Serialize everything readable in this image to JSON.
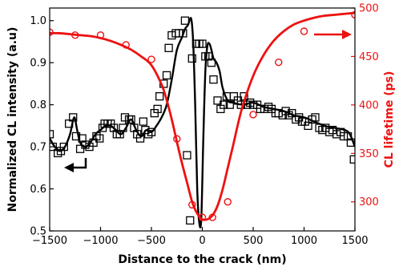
{
  "chart_data": {
    "type": "line",
    "xlabel": "Distance to the crack (nm)",
    "ylabel_left": "Normalized CL intensity (a.u)",
    "ylabel_right": "CL lifetime (ps)",
    "xlim": [
      -1500,
      1500
    ],
    "ylim_left": [
      0.5,
      1.03
    ],
    "ylim_right": [
      270,
      500
    ],
    "x_ticks": [
      -1500,
      -1000,
      -500,
      0,
      500,
      1000,
      1500
    ],
    "x_tick_labels": [
      "−1500",
      "−1000",
      "−500",
      "0",
      "500",
      "1000",
      "1500"
    ],
    "y_left_ticks": [
      0.5,
      0.6,
      0.7,
      0.8,
      0.9,
      1.0
    ],
    "y_left_tick_labels": [
      "0.5",
      "0.6",
      "0.7",
      "0.8",
      "0.9",
      "1.0"
    ],
    "y_right_ticks": [
      300,
      350,
      400,
      450,
      500
    ],
    "y_right_tick_labels": [
      "300",
      "350",
      "400",
      "450",
      "500"
    ],
    "grid": false,
    "colors": {
      "intensity": "#000000",
      "lifetime": "#ee1111"
    },
    "series": [
      {
        "axis": "left",
        "style": "open-squares",
        "x": [
          -1500,
          -1470,
          -1420,
          -1390,
          -1360,
          -1310,
          -1270,
          -1240,
          -1200,
          -1180,
          -1150,
          -1110,
          -1070,
          -1040,
          -1010,
          -980,
          -960,
          -930,
          -900,
          -870,
          -840,
          -810,
          -780,
          -760,
          -720,
          -700,
          -670,
          -640,
          -610,
          -580,
          -560,
          -530,
          -500,
          -470,
          -440,
          -420,
          -380,
          -350,
          -330,
          -300,
          -260,
          -230,
          -190,
          -170,
          -150,
          -120,
          -100,
          -60,
          -30,
          0,
          30,
          60,
          90,
          110,
          150,
          180,
          210,
          240,
          270,
          310,
          350,
          380,
          410,
          440,
          470,
          500,
          540,
          570,
          610,
          650,
          680,
          720,
          750,
          790,
          820,
          850,
          880,
          920,
          950,
          980,
          1010,
          1040,
          1080,
          1110,
          1150,
          1180,
          1210,
          1250,
          1280,
          1320,
          1360,
          1390,
          1430,
          1460,
          1490
        ],
        "y": [
          0.73,
          0.7,
          0.685,
          0.69,
          0.7,
          0.755,
          0.77,
          0.725,
          0.695,
          0.72,
          0.705,
          0.7,
          0.71,
          0.725,
          0.72,
          0.745,
          0.755,
          0.755,
          0.755,
          0.745,
          0.73,
          0.73,
          0.745,
          0.77,
          0.765,
          0.765,
          0.745,
          0.73,
          0.72,
          0.76,
          0.74,
          0.73,
          0.735,
          0.78,
          0.79,
          0.82,
          0.85,
          0.87,
          0.935,
          0.965,
          0.97,
          0.97,
          0.97,
          1.0,
          0.68,
          0.525,
          0.91,
          0.945,
          0.945,
          0.945,
          0.915,
          0.915,
          0.9,
          0.86,
          0.81,
          0.79,
          0.8,
          0.82,
          0.8,
          0.82,
          0.81,
          0.8,
          0.82,
          0.8,
          0.805,
          0.8,
          0.8,
          0.79,
          0.79,
          0.795,
          0.79,
          0.78,
          0.78,
          0.775,
          0.785,
          0.775,
          0.78,
          0.765,
          0.77,
          0.76,
          0.76,
          0.75,
          0.765,
          0.77,
          0.745,
          0.74,
          0.745,
          0.735,
          0.74,
          0.73,
          0.735,
          0.725,
          0.725,
          0.71,
          0.67
        ]
      },
      {
        "axis": "left",
        "style": "line",
        "x": [
          -1500,
          -1450,
          -1400,
          -1350,
          -1300,
          -1260,
          -1230,
          -1200,
          -1150,
          -1100,
          -1050,
          -1000,
          -950,
          -900,
          -850,
          -800,
          -750,
          -700,
          -650,
          -600,
          -550,
          -500,
          -450,
          -400,
          -350,
          -300,
          -250,
          -200,
          -170,
          -140,
          -110,
          -90,
          -70,
          -50,
          -30,
          -10,
          10,
          30,
          50,
          70,
          90,
          110,
          140,
          170,
          200,
          250,
          300,
          400,
          500,
          600,
          700,
          800,
          900,
          1000,
          1100,
          1200,
          1300,
          1400,
          1450,
          1500
        ],
        "y": [
          0.72,
          0.7,
          0.69,
          0.7,
          0.73,
          0.77,
          0.74,
          0.71,
          0.7,
          0.71,
          0.73,
          0.74,
          0.75,
          0.75,
          0.74,
          0.73,
          0.745,
          0.765,
          0.74,
          0.725,
          0.74,
          0.735,
          0.75,
          0.77,
          0.8,
          0.86,
          0.93,
          0.96,
          0.98,
          0.99,
          1.005,
          0.95,
          0.8,
          0.6,
          0.52,
          0.53,
          0.72,
          0.88,
          0.94,
          0.945,
          0.93,
          0.91,
          0.9,
          0.88,
          0.84,
          0.81,
          0.805,
          0.8,
          0.805,
          0.795,
          0.79,
          0.785,
          0.775,
          0.77,
          0.76,
          0.75,
          0.745,
          0.74,
          0.73,
          0.7
        ]
      },
      {
        "axis": "right",
        "style": "open-circles",
        "x": [
          -1500,
          -1250,
          -1000,
          -750,
          -500,
          -250,
          -100,
          0,
          100,
          250,
          500,
          750,
          1000,
          1500
        ],
        "y": [
          475,
          472,
          472,
          462,
          447,
          365,
          297,
          284,
          284,
          300,
          390,
          444,
          476,
          493
        ]
      },
      {
        "axis": "right",
        "style": "line",
        "x": [
          -1500,
          -1400,
          -1300,
          -1200,
          -1100,
          -1000,
          -900,
          -800,
          -700,
          -600,
          -500,
          -400,
          -350,
          -300,
          -250,
          -200,
          -150,
          -100,
          -50,
          0,
          50,
          100,
          150,
          200,
          250,
          300,
          350,
          400,
          500,
          600,
          700,
          800,
          900,
          1000,
          1100,
          1200,
          1300,
          1400,
          1500
        ],
        "y": [
          474,
          474,
          473,
          472,
          471,
          469,
          466,
          462,
          457,
          450,
          441,
          421,
          405,
          385,
          362,
          340,
          320,
          300,
          288,
          282,
          282,
          286,
          296,
          313,
          335,
          357,
          380,
          400,
          430,
          451,
          466,
          476,
          483,
          487,
          490,
          492,
          493,
          494,
          495
        ]
      }
    ]
  }
}
